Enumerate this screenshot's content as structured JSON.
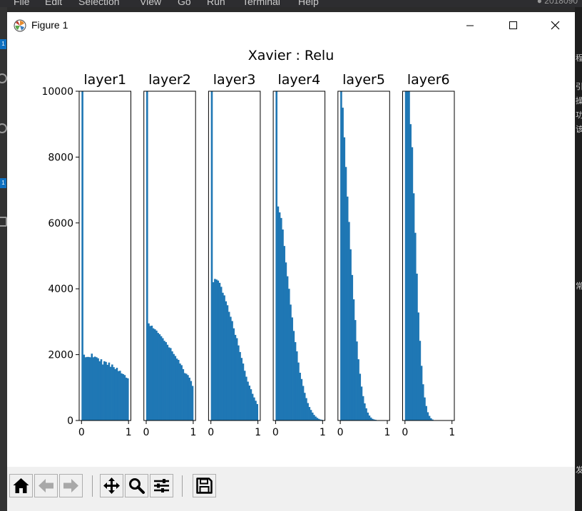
{
  "editor": {
    "menu": [
      "File",
      "Edit",
      "Selection",
      "View",
      "Go",
      "Run",
      "Terminal",
      "Help"
    ],
    "right_text": "● 2018090",
    "badges": [
      "1",
      "1"
    ],
    "side_glyphs": [
      "程",
      "引",
      "操",
      "功",
      "该",
      "常",
      "发"
    ]
  },
  "window": {
    "title": "Figure 1",
    "controls": [
      "minimize",
      "maximize",
      "close"
    ]
  },
  "toolbar": {
    "buttons": [
      {
        "name": "home",
        "icon": "home-icon"
      },
      {
        "name": "back",
        "icon": "arrow-left-icon"
      },
      {
        "name": "forward",
        "icon": "arrow-right-icon"
      },
      {
        "name": "pan",
        "icon": "move-icon"
      },
      {
        "name": "zoom",
        "icon": "magnifier-icon"
      },
      {
        "name": "configure-subplots",
        "icon": "sliders-icon"
      },
      {
        "name": "save",
        "icon": "floppy-icon"
      }
    ]
  },
  "chart_data": {
    "type": "bar",
    "suptitle": "Xavier : Relu",
    "bar_color": "#1f77b4",
    "ylim": [
      0,
      10000
    ],
    "yticks": [
      0,
      2000,
      4000,
      6000,
      8000,
      10000
    ],
    "xlim": [
      -0.05,
      1.05
    ],
    "xticks": [
      0,
      1
    ],
    "bins": 30,
    "bin_range": [
      0,
      1
    ],
    "grid": false,
    "subplots": [
      {
        "title": "layer1",
        "counts": [
          10000,
          2000,
          1920,
          1930,
          1930,
          1920,
          2030,
          1920,
          1940,
          1920,
          1890,
          1800,
          1860,
          1700,
          1800,
          1780,
          1690,
          1760,
          1630,
          1700,
          1620,
          1560,
          1600,
          1500,
          1510,
          1430,
          1410,
          1380,
          1300,
          1280
        ]
      },
      {
        "title": "layer2",
        "counts": [
          10000,
          2950,
          2870,
          2880,
          2800,
          2770,
          2730,
          2660,
          2620,
          2560,
          2500,
          2420,
          2380,
          2300,
          2220,
          2200,
          2100,
          2020,
          1960,
          1880,
          1840,
          1730,
          1680,
          1560,
          1440,
          1420,
          1380,
          1300,
          1200,
          1050
        ]
      },
      {
        "title": "layer3",
        "counts": [
          10000,
          4200,
          4300,
          4280,
          4250,
          4180,
          4060,
          3880,
          3800,
          3620,
          3500,
          3300,
          3150,
          3020,
          2800,
          2600,
          2500,
          2280,
          2080,
          1900,
          1730,
          1510,
          1330,
          1180,
          1060,
          950,
          810,
          700,
          600,
          500
        ]
      },
      {
        "title": "layer4",
        "counts": [
          10000,
          6500,
          6320,
          6150,
          5800,
          5300,
          4800,
          4380,
          4000,
          3520,
          3130,
          2720,
          2380,
          2100,
          1760,
          1450,
          1260,
          1050,
          840,
          680,
          530,
          410,
          320,
          240,
          170,
          120,
          80,
          50,
          30,
          20
        ]
      },
      {
        "title": "layer5",
        "counts": [
          10000,
          9500,
          8600,
          7700,
          6800,
          6030,
          5200,
          4420,
          3680,
          3050,
          2400,
          1860,
          1420,
          1030,
          740,
          520,
          370,
          240,
          150,
          90,
          50,
          30,
          20,
          10,
          5,
          3,
          2,
          1,
          0,
          0
        ]
      },
      {
        "title": "layer6",
        "counts": [
          10000,
          10000,
          10000,
          9000,
          8300,
          6900,
          5700,
          4460,
          3280,
          2420,
          1660,
          1100,
          700,
          440,
          250,
          140,
          70,
          30,
          10,
          5,
          2,
          1,
          0,
          0,
          0,
          0,
          0,
          0,
          0,
          0
        ]
      }
    ]
  }
}
